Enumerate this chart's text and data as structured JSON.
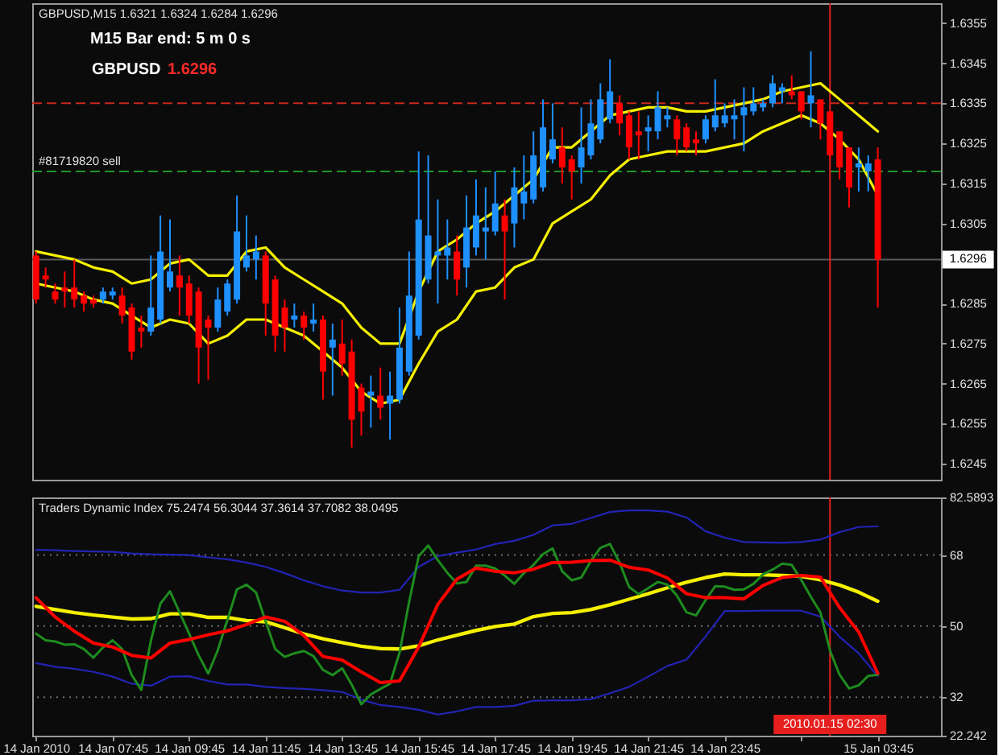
{
  "chart_data": [
    {
      "type": "candlestick",
      "title": "GBPUSD,M15  1.6321 1.6324 1.6284 1.6296",
      "annotations": [
        "M15 Bar end: 5 m 0 s",
        "GBPUSD",
        "1.6296"
      ],
      "x": [
        "2010-01-14T05:45",
        "2010-01-14T06:00",
        "2010-01-14T06:15",
        "2010-01-14T06:30",
        "2010-01-14T06:45",
        "2010-01-14T07:00",
        "2010-01-14T07:15",
        "2010-01-14T07:30",
        "2010-01-14T07:45",
        "2010-01-14T08:00",
        "2010-01-14T08:15",
        "2010-01-14T08:30",
        "2010-01-14T08:45",
        "2010-01-14T09:00",
        "2010-01-14T09:15",
        "2010-01-14T09:30",
        "2010-01-14T09:45",
        "2010-01-14T10:00",
        "2010-01-14T10:15",
        "2010-01-14T10:30",
        "2010-01-14T10:45",
        "2010-01-14T11:00",
        "2010-01-14T11:15",
        "2010-01-14T11:30",
        "2010-01-14T11:45",
        "2010-01-14T12:00",
        "2010-01-14T12:15",
        "2010-01-14T12:30",
        "2010-01-14T12:45",
        "2010-01-14T13:00",
        "2010-01-14T13:15",
        "2010-01-14T13:30",
        "2010-01-14T13:45",
        "2010-01-14T14:00",
        "2010-01-14T14:15",
        "2010-01-14T14:30",
        "2010-01-14T14:45",
        "2010-01-14T15:00",
        "2010-01-14T15:15",
        "2010-01-14T15:30",
        "2010-01-14T15:45",
        "2010-01-14T16:00",
        "2010-01-14T16:15",
        "2010-01-14T16:30",
        "2010-01-14T16:45",
        "2010-01-14T17:00",
        "2010-01-14T17:15",
        "2010-01-14T17:30",
        "2010-01-14T17:45",
        "2010-01-14T18:00",
        "2010-01-14T18:15",
        "2010-01-14T18:30",
        "2010-01-14T18:45",
        "2010-01-14T19:00",
        "2010-01-14T19:15",
        "2010-01-14T19:30",
        "2010-01-14T19:45",
        "2010-01-14T20:00",
        "2010-01-14T20:15",
        "2010-01-14T20:30",
        "2010-01-14T20:45",
        "2010-01-14T21:00",
        "2010-01-14T21:15",
        "2010-01-14T21:30",
        "2010-01-14T21:45",
        "2010-01-14T22:00",
        "2010-01-14T22:15",
        "2010-01-14T22:30",
        "2010-01-14T22:45",
        "2010-01-14T23:00",
        "2010-01-14T23:15",
        "2010-01-14T23:30",
        "2010-01-14T23:45",
        "2010-01-15T00:00",
        "2010-01-15T00:15",
        "2010-01-15T00:30",
        "2010-01-15T00:45",
        "2010-01-15T01:00",
        "2010-01-15T01:15",
        "2010-01-15T01:30",
        "2010-01-15T01:45",
        "2010-01-15T02:00",
        "2010-01-15T02:15",
        "2010-01-15T02:30",
        "2010-01-15T02:45",
        "2010-01-15T03:00",
        "2010-01-15T03:15",
        "2010-01-15T03:30",
        "2010-01-15T03:45"
      ],
      "ohlc": [
        [
          1.6297,
          1.6298,
          1.6285,
          1.6286
        ],
        [
          1.6292,
          1.6294,
          1.6289,
          1.6291
        ],
        [
          1.6288,
          1.629,
          1.6285,
          1.6286
        ],
        [
          1.6289,
          1.6293,
          1.6284,
          1.6288
        ],
        [
          1.6289,
          1.6296,
          1.6284,
          1.6286
        ],
        [
          1.6287,
          1.6288,
          1.6283,
          1.6285
        ],
        [
          1.6286,
          1.6287,
          1.6284,
          1.6285
        ],
        [
          1.6286,
          1.6289,
          1.6285,
          1.6288
        ],
        [
          1.6287,
          1.6289,
          1.6286,
          1.6288
        ],
        [
          1.6287,
          1.6289,
          1.628,
          1.6282
        ],
        [
          1.6284,
          1.6285,
          1.6271,
          1.6273
        ],
        [
          1.6279,
          1.6282,
          1.6274,
          1.6278
        ],
        [
          1.6278,
          1.6297,
          1.6277,
          1.6284
        ],
        [
          1.6281,
          1.6307,
          1.628,
          1.6298
        ],
        [
          1.6289,
          1.6306,
          1.6288,
          1.6293
        ],
        [
          1.6292,
          1.6297,
          1.6282,
          1.6289
        ],
        [
          1.629,
          1.6292,
          1.628,
          1.6282
        ],
        [
          1.6288,
          1.6289,
          1.6265,
          1.6274
        ],
        [
          1.6281,
          1.6282,
          1.6266,
          1.6279
        ],
        [
          1.6279,
          1.6289,
          1.6278,
          1.6286
        ],
        [
          1.6283,
          1.6291,
          1.6282,
          1.629
        ],
        [
          1.6286,
          1.6312,
          1.6285,
          1.6303
        ],
        [
          1.6294,
          1.6307,
          1.6293,
          1.6297
        ],
        [
          1.6296,
          1.6302,
          1.6291,
          1.6298
        ],
        [
          1.6297,
          1.6298,
          1.6277,
          1.6285
        ],
        [
          1.6291,
          1.6292,
          1.6273,
          1.6277
        ],
        [
          1.6284,
          1.6286,
          1.6273,
          1.6279
        ],
        [
          1.6281,
          1.6285,
          1.6279,
          1.6282
        ],
        [
          1.6282,
          1.6283,
          1.6276,
          1.6279
        ],
        [
          1.628,
          1.6285,
          1.6278,
          1.6281
        ],
        [
          1.6281,
          1.6282,
          1.6261,
          1.6268
        ],
        [
          1.6274,
          1.628,
          1.6262,
          1.6276
        ],
        [
          1.6275,
          1.6281,
          1.6267,
          1.627
        ],
        [
          1.6273,
          1.6276,
          1.6249,
          1.6256
        ],
        [
          1.6264,
          1.6265,
          1.6252,
          1.6258
        ],
        [
          1.6262,
          1.6267,
          1.6254,
          1.6263
        ],
        [
          1.6262,
          1.6269,
          1.6256,
          1.6259
        ],
        [
          1.626,
          1.6268,
          1.6251,
          1.6262
        ],
        [
          1.6261,
          1.6284,
          1.626,
          1.6274
        ],
        [
          1.6268,
          1.6298,
          1.6267,
          1.6287
        ],
        [
          1.6277,
          1.6323,
          1.6276,
          1.6306
        ],
        [
          1.6291,
          1.6322,
          1.629,
          1.6302
        ],
        [
          1.6297,
          1.6311,
          1.6285,
          1.6298
        ],
        [
          1.6297,
          1.6306,
          1.6291,
          1.6299
        ],
        [
          1.6298,
          1.6302,
          1.6287,
          1.6291
        ],
        [
          1.6294,
          1.6312,
          1.6289,
          1.6304
        ],
        [
          1.6299,
          1.6316,
          1.6297,
          1.6307
        ],
        [
          1.6303,
          1.6314,
          1.6296,
          1.6304
        ],
        [
          1.6303,
          1.6318,
          1.6302,
          1.631
        ],
        [
          1.6307,
          1.6311,
          1.6286,
          1.6303
        ],
        [
          1.6305,
          1.6319,
          1.6299,
          1.6314
        ],
        [
          1.631,
          1.6322,
          1.6306,
          1.6313
        ],
        [
          1.6311,
          1.6328,
          1.631,
          1.6322
        ],
        [
          1.6314,
          1.6336,
          1.6313,
          1.6329
        ],
        [
          1.6321,
          1.6335,
          1.632,
          1.6326
        ],
        [
          1.6324,
          1.6329,
          1.6315,
          1.6319
        ],
        [
          1.6321,
          1.6322,
          1.6311,
          1.6318
        ],
        [
          1.6319,
          1.6334,
          1.6315,
          1.6324
        ],
        [
          1.6322,
          1.6336,
          1.6321,
          1.633
        ],
        [
          1.6326,
          1.634,
          1.6325,
          1.6336
        ],
        [
          1.6331,
          1.6346,
          1.633,
          1.6338
        ],
        [
          1.6335,
          1.6337,
          1.6327,
          1.633
        ],
        [
          1.6332,
          1.6333,
          1.6321,
          1.6324
        ],
        [
          1.6328,
          1.6333,
          1.6321,
          1.6327
        ],
        [
          1.6328,
          1.6332,
          1.6323,
          1.6329
        ],
        [
          1.6328,
          1.6338,
          1.6326,
          1.6334
        ],
        [
          1.6331,
          1.6334,
          1.6329,
          1.6332
        ],
        [
          1.6331,
          1.6332,
          1.6322,
          1.6326
        ],
        [
          1.6329,
          1.633,
          1.6323,
          1.6324
        ],
        [
          1.6326,
          1.6328,
          1.6322,
          1.6325
        ],
        [
          1.6326,
          1.6332,
          1.6325,
          1.6331
        ],
        [
          1.6329,
          1.6341,
          1.6328,
          1.6332
        ],
        [
          1.633,
          1.6335,
          1.6329,
          1.6332
        ],
        [
          1.6331,
          1.6336,
          1.6326,
          1.6332
        ],
        [
          1.6332,
          1.6339,
          1.6323,
          1.6334
        ],
        [
          1.6333,
          1.6339,
          1.6332,
          1.6335
        ],
        [
          1.6334,
          1.6336,
          1.6333,
          1.6335
        ],
        [
          1.6335,
          1.6342,
          1.6334,
          1.634
        ],
        [
          1.6338,
          1.634,
          1.6335,
          1.6339
        ],
        [
          1.6338,
          1.6342,
          1.6336,
          1.6337
        ],
        [
          1.6338,
          1.6338,
          1.6331,
          1.6333
        ],
        [
          1.6335,
          1.6348,
          1.6329,
          1.6337
        ],
        [
          1.6336,
          1.6336,
          1.6326,
          1.633
        ],
        [
          1.6333,
          1.6333,
          1.6321,
          1.6322
        ],
        [
          1.6328,
          1.6328,
          1.6316,
          1.6319
        ],
        [
          1.6324,
          1.6324,
          1.6309,
          1.6314
        ],
        [
          1.6319,
          1.6324,
          1.6313,
          1.632
        ],
        [
          1.6318,
          1.6322,
          1.6313,
          1.632
        ],
        [
          1.6321,
          1.6324,
          1.6284,
          1.6296
        ]
      ],
      "colors": [
        "#ff0000",
        "#ff0000",
        "#ff0000",
        "#ff0000",
        "#ff0000",
        "#ff0000",
        "#ff0000",
        "#1e90ff",
        "#1e90ff",
        "#ff0000",
        "#ff0000",
        "#ff0000",
        "#1e90ff",
        "#1e90ff",
        "#1e90ff",
        "#ff0000",
        "#ff0000",
        "#ff0000",
        "#ff0000",
        "#1e90ff",
        "#1e90ff",
        "#1e90ff",
        "#1e90ff",
        "#1e90ff",
        "#ff0000",
        "#ff0000",
        "#ff0000",
        "#1e90ff",
        "#ff0000",
        "#1e90ff",
        "#ff0000",
        "#1e90ff",
        "#ff0000",
        "#ff0000",
        "#ff0000",
        "#1e90ff",
        "#ff0000",
        "#1e90ff",
        "#1e90ff",
        "#1e90ff",
        "#1e90ff",
        "#1e90ff",
        "#1e90ff",
        "#1e90ff",
        "#ff0000",
        "#1e90ff",
        "#1e90ff",
        "#1e90ff",
        "#1e90ff",
        "#ff0000",
        "#1e90ff",
        "#1e90ff",
        "#1e90ff",
        "#1e90ff",
        "#1e90ff",
        "#ff0000",
        "#ff0000",
        "#1e90ff",
        "#1e90ff",
        "#1e90ff",
        "#1e90ff",
        "#ff0000",
        "#ff0000",
        "#ff0000",
        "#1e90ff",
        "#1e90ff",
        "#1e90ff",
        "#ff0000",
        "#ff0000",
        "#ff0000",
        "#1e90ff",
        "#1e90ff",
        "#1e90ff",
        "#1e90ff",
        "#1e90ff",
        "#1e90ff",
        "#1e90ff",
        "#1e90ff",
        "#1e90ff",
        "#ff0000",
        "#ff0000",
        "#1e90ff",
        "#ff0000",
        "#ff0000",
        "#ff0000",
        "#ff0000",
        "#1e90ff",
        "#1e90ff",
        "#ff0000"
      ],
      "series": [
        {
          "type": "line",
          "color": "#f5f000",
          "x": [
            "2010-01-14T05:45",
            "2010-01-14T06:15",
            "2010-01-14T06:45",
            "2010-01-14T07:15",
            "2010-01-14T07:45",
            "2010-01-14T08:15",
            "2010-01-14T08:45",
            "2010-01-14T09:15",
            "2010-01-14T09:45",
            "2010-01-14T10:15",
            "2010-01-14T10:45",
            "2010-01-14T11:15",
            "2010-01-14T11:45",
            "2010-01-14T12:15",
            "2010-01-14T12:45",
            "2010-01-14T13:15",
            "2010-01-14T13:45",
            "2010-01-14T14:15",
            "2010-01-14T14:45",
            "2010-01-14T15:15",
            "2010-01-14T15:45",
            "2010-01-14T16:15",
            "2010-01-14T16:45",
            "2010-01-14T17:15",
            "2010-01-14T17:45",
            "2010-01-14T18:15",
            "2010-01-14T18:45",
            "2010-01-14T19:15",
            "2010-01-14T19:45",
            "2010-01-14T20:15",
            "2010-01-14T20:45",
            "2010-01-14T21:15",
            "2010-01-14T21:45",
            "2010-01-14T22:15",
            "2010-01-14T22:45",
            "2010-01-14T23:15",
            "2010-01-14T23:45",
            "2010-01-15T00:15",
            "2010-01-15T00:45",
            "2010-01-15T01:15",
            "2010-01-15T01:45",
            "2010-01-15T02:15",
            "2010-01-15T02:45",
            "2010-01-15T03:15",
            "2010-01-15T03:45"
          ],
          "values": [
            1.6298,
            1.6297,
            1.6296,
            1.6294,
            1.6293,
            1.629,
            1.6291,
            1.6295,
            1.6296,
            1.6292,
            1.6292,
            1.6298,
            1.6299,
            1.6294,
            1.6291,
            1.6288,
            1.6285,
            1.6279,
            1.6275,
            1.6275,
            1.6288,
            1.6298,
            1.6301,
            1.6305,
            1.6308,
            1.6312,
            1.6316,
            1.6324,
            1.6324,
            1.6328,
            1.6332,
            1.6333,
            1.6334,
            1.6334,
            1.6333,
            1.6333,
            1.6334,
            1.6335,
            1.6336,
            1.6338,
            1.6339,
            1.634,
            1.6336,
            1.6332,
            1.6328
          ]
        },
        {
          "type": "line",
          "color": "#f5f000",
          "x": [
            "2010-01-14T05:45",
            "2010-01-14T06:15",
            "2010-01-14T06:45",
            "2010-01-14T07:15",
            "2010-01-14T07:45",
            "2010-01-14T08:15",
            "2010-01-14T08:45",
            "2010-01-14T09:15",
            "2010-01-14T09:45",
            "2010-01-14T10:15",
            "2010-01-14T10:45",
            "2010-01-14T11:15",
            "2010-01-14T11:45",
            "2010-01-14T12:15",
            "2010-01-14T12:45",
            "2010-01-14T13:15",
            "2010-01-14T13:45",
            "2010-01-14T14:15",
            "2010-01-14T14:45",
            "2010-01-14T15:15",
            "2010-01-14T15:45",
            "2010-01-14T16:15",
            "2010-01-14T16:45",
            "2010-01-14T17:15",
            "2010-01-14T17:45",
            "2010-01-14T18:15",
            "2010-01-14T18:45",
            "2010-01-14T19:15",
            "2010-01-14T19:45",
            "2010-01-14T20:15",
            "2010-01-14T20:45",
            "2010-01-14T21:15",
            "2010-01-14T21:45",
            "2010-01-14T22:15",
            "2010-01-14T22:45",
            "2010-01-14T23:15",
            "2010-01-14T23:45",
            "2010-01-15T00:15",
            "2010-01-15T00:45",
            "2010-01-15T01:15",
            "2010-01-15T01:45",
            "2010-01-15T02:15",
            "2010-01-15T02:45",
            "2010-01-15T03:15",
            "2010-01-15T03:45"
          ],
          "values": [
            1.629,
            1.6289,
            1.6288,
            1.6286,
            1.6285,
            1.6282,
            1.6279,
            1.6281,
            1.628,
            1.6275,
            1.6277,
            1.6281,
            1.6281,
            1.6279,
            1.6277,
            1.6273,
            1.6269,
            1.6263,
            1.626,
            1.6261,
            1.627,
            1.6278,
            1.6281,
            1.6288,
            1.6289,
            1.6294,
            1.6296,
            1.6305,
            1.6308,
            1.6311,
            1.6317,
            1.6321,
            1.6322,
            1.6323,
            1.6323,
            1.6323,
            1.6324,
            1.6325,
            1.6328,
            1.633,
            1.6332,
            1.633,
            1.6326,
            1.6321,
            1.6312
          ]
        }
      ],
      "xlim": [
        "2010-01-14T05:39",
        "2010-01-15T05:24"
      ],
      "ylim": [
        1.6241,
        1.636
      ],
      "yticks": [
        1.6245,
        1.6255,
        1.6265,
        1.6275,
        1.6285,
        1.6305,
        1.6315,
        1.6325,
        1.6335,
        1.6345,
        1.6355
      ],
      "tick_labels": "y",
      "ref_lines": [
        {
          "axis": "y",
          "value": 1.6335,
          "color": "#c8281e",
          "line_style": "dashed"
        },
        {
          "axis": "y",
          "value": 1.6318,
          "label": "#81719820 sell",
          "color": "#1e9628",
          "line_style": "dashed"
        },
        {
          "axis": "y",
          "value": 1.6296,
          "label": "1.6296",
          "color": "#5a5a5a"
        },
        {
          "axis": "x",
          "value": "2010-01-15T02:30",
          "color": "#e61e1e"
        }
      ]
    },
    {
      "type": "line",
      "title": "Traders Dynamic Index  75.2474 56.3044 37.3614 37.7082 38.0495",
      "x": [
        "2010-01-14T05:45",
        "2010-01-14T06:15",
        "2010-01-14T06:45",
        "2010-01-14T07:15",
        "2010-01-14T07:45",
        "2010-01-14T08:15",
        "2010-01-14T08:45",
        "2010-01-14T09:15",
        "2010-01-14T09:45",
        "2010-01-14T10:15",
        "2010-01-14T10:45",
        "2010-01-14T11:15",
        "2010-01-14T11:45",
        "2010-01-14T12:15",
        "2010-01-14T12:45",
        "2010-01-14T13:15",
        "2010-01-14T13:45",
        "2010-01-14T14:15",
        "2010-01-14T14:45",
        "2010-01-14T15:15",
        "2010-01-14T15:45",
        "2010-01-14T16:15",
        "2010-01-14T16:45",
        "2010-01-14T17:15",
        "2010-01-14T17:45",
        "2010-01-14T18:15",
        "2010-01-14T18:45",
        "2010-01-14T19:15",
        "2010-01-14T19:45",
        "2010-01-14T20:15",
        "2010-01-14T20:45",
        "2010-01-14T21:15",
        "2010-01-14T21:45",
        "2010-01-14T22:15",
        "2010-01-14T22:45",
        "2010-01-14T23:15",
        "2010-01-14T23:45",
        "2010-01-15T00:15",
        "2010-01-15T00:45",
        "2010-01-15T01:15",
        "2010-01-15T01:45",
        "2010-01-15T02:15",
        "2010-01-15T02:45",
        "2010-01-15T03:15",
        "2010-01-15T03:45"
      ],
      "series": [
        {
          "color": "#2323b4",
          "values": [
            69.3,
            69.2,
            69.0,
            68.9,
            68.8,
            68.4,
            68.2,
            68.1,
            68.0,
            67.4,
            66.9,
            66.1,
            65.0,
            63.4,
            61.6,
            60.1,
            59.0,
            58.5,
            58.5,
            59.2,
            65.0,
            67.7,
            68.6,
            69.4,
            70.8,
            71.6,
            73.1,
            75.5,
            75.9,
            77.4,
            78.9,
            79.3,
            79.3,
            79.0,
            77.5,
            74.0,
            72.4,
            71.3,
            71.2,
            71.1,
            71.3,
            71.9,
            73.8,
            75.1,
            75.2474
          ]
        },
        {
          "color": "#2323b4",
          "values": [
            40.6,
            39.7,
            39.2,
            38.4,
            37.2,
            35.4,
            34.9,
            37.2,
            37.3,
            36.1,
            35.2,
            35.2,
            34.6,
            34.3,
            34.1,
            33.8,
            33.3,
            31.4,
            30.0,
            29.5,
            28.8,
            27.6,
            28.4,
            29.5,
            29.5,
            29.8,
            31.1,
            31.2,
            31.2,
            31.5,
            33.0,
            34.6,
            37.2,
            39.9,
            41.5,
            47.4,
            53.8,
            53.8,
            53.9,
            53.9,
            53.9,
            52.4,
            47.3,
            43.1,
            37.3614
          ]
        },
        {
          "color": "#f5f000",
          "values": [
            55.0,
            54.2,
            53.4,
            52.8,
            52.3,
            51.8,
            51.9,
            53.1,
            53.1,
            52.2,
            52.2,
            51.4,
            51.1,
            49.6,
            48.0,
            46.8,
            45.8,
            44.9,
            44.3,
            44.2,
            45.0,
            46.5,
            47.7,
            48.9,
            49.9,
            50.5,
            52.4,
            53.2,
            53.4,
            54.2,
            55.4,
            56.8,
            58.2,
            59.7,
            61.1,
            62.3,
            63.2,
            63.0,
            63.0,
            62.8,
            62.6,
            61.7,
            60.4,
            58.6,
            56.3044
          ]
        },
        {
          "color": "#1e8c1e",
          "x": [
            "2010-01-14T05:45",
            "2010-01-14T06:00",
            "2010-01-14T06:15",
            "2010-01-14T06:30",
            "2010-01-14T06:45",
            "2010-01-14T07:00",
            "2010-01-14T07:15",
            "2010-01-14T07:30",
            "2010-01-14T07:45",
            "2010-01-14T08:00",
            "2010-01-14T08:15",
            "2010-01-14T08:30",
            "2010-01-14T08:45",
            "2010-01-14T09:00",
            "2010-01-14T09:15",
            "2010-01-14T09:30",
            "2010-01-14T09:45",
            "2010-01-14T10:00",
            "2010-01-14T10:15",
            "2010-01-14T10:30",
            "2010-01-14T10:45",
            "2010-01-14T11:00",
            "2010-01-14T11:15",
            "2010-01-14T11:30",
            "2010-01-14T11:45",
            "2010-01-14T12:00",
            "2010-01-14T12:15",
            "2010-01-14T12:30",
            "2010-01-14T12:45",
            "2010-01-14T13:00",
            "2010-01-14T13:15",
            "2010-01-14T13:30",
            "2010-01-14T13:45",
            "2010-01-14T14:00",
            "2010-01-14T14:15",
            "2010-01-14T14:30",
            "2010-01-14T14:45",
            "2010-01-14T15:00",
            "2010-01-14T15:15",
            "2010-01-14T15:30",
            "2010-01-14T15:45",
            "2010-01-14T16:00",
            "2010-01-14T16:15",
            "2010-01-14T16:30",
            "2010-01-14T16:45",
            "2010-01-14T17:00",
            "2010-01-14T17:15",
            "2010-01-14T17:30",
            "2010-01-14T17:45",
            "2010-01-14T18:00",
            "2010-01-14T18:15",
            "2010-01-14T18:30",
            "2010-01-14T18:45",
            "2010-01-14T19:00",
            "2010-01-14T19:15",
            "2010-01-14T19:30",
            "2010-01-14T19:45",
            "2010-01-14T20:00",
            "2010-01-14T20:15",
            "2010-01-14T20:30",
            "2010-01-14T20:45",
            "2010-01-14T21:00",
            "2010-01-14T21:15",
            "2010-01-14T21:30",
            "2010-01-14T21:45",
            "2010-01-14T22:00",
            "2010-01-14T22:15",
            "2010-01-14T22:30",
            "2010-01-14T22:45",
            "2010-01-14T23:00",
            "2010-01-14T23:15",
            "2010-01-14T23:30",
            "2010-01-14T23:45",
            "2010-01-15T00:00",
            "2010-01-15T00:15",
            "2010-01-15T00:30",
            "2010-01-15T00:45",
            "2010-01-15T01:00",
            "2010-01-15T01:15",
            "2010-01-15T01:30",
            "2010-01-15T01:45",
            "2010-01-15T02:00",
            "2010-01-15T02:15",
            "2010-01-15T02:30",
            "2010-01-15T02:45",
            "2010-01-15T03:00",
            "2010-01-15T03:15",
            "2010-01-15T03:30",
            "2010-01-15T03:45"
          ],
          "values": [
            48.1,
            46.4,
            46.1,
            45.3,
            45.4,
            44.2,
            42.0,
            44.6,
            46.4,
            44.2,
            37.6,
            33.8,
            46.2,
            55.7,
            58.8,
            53.5,
            48.1,
            42.6,
            38.0,
            43.9,
            51.5,
            59.3,
            60.5,
            58.5,
            51.2,
            44.2,
            42.2,
            43.1,
            43.7,
            42.4,
            38.9,
            37.6,
            39.3,
            35.2,
            30.2,
            32.7,
            34.1,
            35.4,
            43.3,
            56.1,
            67.7,
            70.4,
            66.7,
            63.5,
            60.8,
            61.2,
            65.3,
            65.3,
            64.6,
            62.8,
            60.7,
            63.4,
            65.5,
            68.2,
            69.7,
            63.9,
            61.6,
            62.3,
            66.5,
            69.8,
            70.8,
            66.1,
            59.9,
            58.1,
            59.6,
            61.2,
            60.5,
            57.7,
            53.5,
            52.7,
            56.6,
            60.1,
            60.0,
            59.2,
            59.3,
            60.7,
            63.1,
            64.3,
            65.8,
            65.5,
            61.7,
            57.4,
            53.5,
            43.8,
            37.7,
            34.2,
            35.0,
            37.4,
            37.7082
          ]
        },
        {
          "color": "#ff0000",
          "values": [
            57.2,
            52.3,
            48.7,
            45.7,
            44.7,
            42.6,
            41.9,
            45.7,
            46.6,
            47.8,
            48.8,
            50.4,
            52.3,
            51.2,
            47.6,
            42.3,
            41.4,
            38.4,
            35.7,
            36.1,
            44.7,
            55.5,
            61.9,
            64.7,
            63.9,
            63.5,
            64.4,
            66.1,
            66.2,
            66.6,
            66.7,
            64.9,
            64.2,
            62.2,
            58.2,
            57.2,
            57.2,
            56.9,
            60.3,
            62.3,
            62.8,
            62.4,
            54.7,
            48.5,
            38.0495
          ]
        }
      ],
      "xlim": [
        "2010-01-14T05:39",
        "2010-01-15T05:24"
      ],
      "ylim": [
        22.242,
        82.5893
      ],
      "xticks": [
        {
          "value": "2010-01-14T05:45",
          "label": "14 Jan 2010"
        },
        {
          "value": "2010-01-14T07:45",
          "label": "14 Jan 07:45"
        },
        {
          "value": "2010-01-14T09:45",
          "label": "14 Jan 09:45"
        },
        {
          "value": "2010-01-14T11:45",
          "label": "14 Jan 11:45"
        },
        {
          "value": "2010-01-14T13:45",
          "label": "14 Jan 13:45"
        },
        {
          "value": "2010-01-14T15:45",
          "label": "14 Jan 15:45"
        },
        {
          "value": "2010-01-14T17:45",
          "label": "14 Jan 17:45"
        },
        {
          "value": "2010-01-14T19:45",
          "label": "14 Jan 19:45"
        },
        {
          "value": "2010-01-14T21:45",
          "label": "14 Jan 21:45"
        },
        {
          "value": "2010-01-14T23:45",
          "label": "14 Jan 23:45"
        },
        {
          "value": "2010-01-15T01:45",
          "label": null
        },
        {
          "value": "2010-01-15T03:45",
          "label": "15 Jan 03:45"
        }
      ],
      "yticks": [
        22.242,
        32,
        50,
        68,
        82.5893
      ],
      "ref_lines": [
        {
          "axis": "y",
          "value": 68,
          "color": "#6e6e6e",
          "line_style": "dotted"
        },
        {
          "axis": "y",
          "value": 50,
          "color": "#6e6e6e",
          "line_style": "dotted"
        },
        {
          "axis": "y",
          "value": 32,
          "color": "#6e6e6e",
          "line_style": "dotted"
        },
        {
          "axis": "x",
          "value": "2010-01-15T02:30",
          "label": "2010.01.15 02:30",
          "color": "#e61e1e"
        }
      ]
    }
  ]
}
